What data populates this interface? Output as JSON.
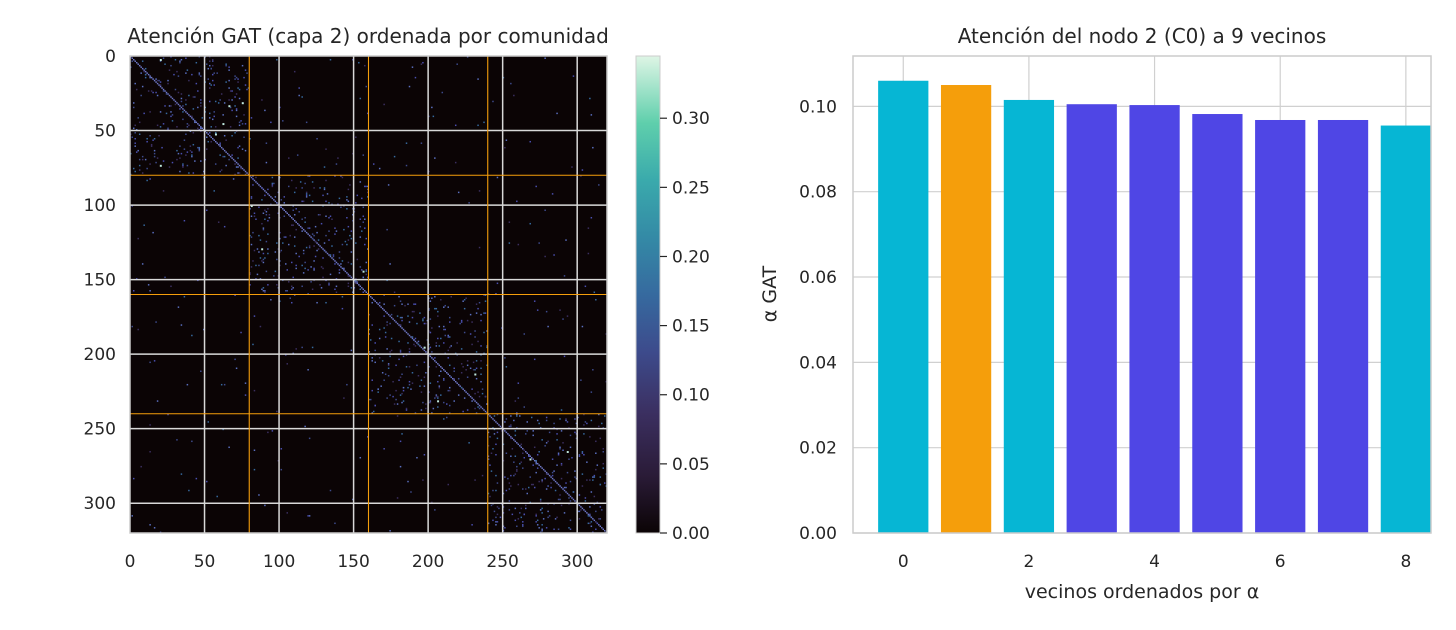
{
  "chart_data": [
    {
      "type": "heatmap",
      "title": "Atención GAT (capa 2) ordenada por comunidad",
      "xlabel": "",
      "ylabel": "",
      "n_nodes": 320,
      "xlim": [
        0,
        320
      ],
      "ylim": [
        320,
        0
      ],
      "x_ticks": [
        "0",
        "50",
        "100",
        "150",
        "200",
        "250",
        "300"
      ],
      "y_ticks": [
        "0",
        "50",
        "100",
        "150",
        "200",
        "250",
        "300"
      ],
      "community_boundaries": [
        80,
        160,
        240
      ],
      "colorbar": {
        "range": [
          0,
          0.345
        ],
        "ticks": [
          "0.00",
          "0.05",
          "0.10",
          "0.15",
          "0.20",
          "0.25",
          "0.30"
        ],
        "colormap": "mako"
      },
      "grid": true,
      "boundary_color": "#f59e0b"
    },
    {
      "type": "bar",
      "title": "Atención del nodo 2 (C0) a 9 vecinos",
      "xlabel": "vecinos ordenados por α",
      "ylabel": "α GAT",
      "categories": [
        0,
        1,
        2,
        3,
        4,
        5,
        6,
        7,
        8
      ],
      "values": [
        0.106,
        0.105,
        0.1015,
        0.1005,
        0.1003,
        0.0982,
        0.0968,
        0.0968,
        0.0955
      ],
      "bar_colors": [
        "#06b6d4",
        "#f59e0b",
        "#06b6d4",
        "#4f46e5",
        "#4f46e5",
        "#4f46e5",
        "#4f46e5",
        "#4f46e5",
        "#06b6d4"
      ],
      "ylim": [
        0,
        0.1118
      ],
      "xlim": [
        -0.8,
        8.4
      ],
      "x_ticks": [
        "0",
        "2",
        "4",
        "6",
        "8"
      ],
      "y_ticks": [
        "0.00",
        "0.02",
        "0.04",
        "0.06",
        "0.08",
        "0.10"
      ],
      "grid": true
    }
  ]
}
